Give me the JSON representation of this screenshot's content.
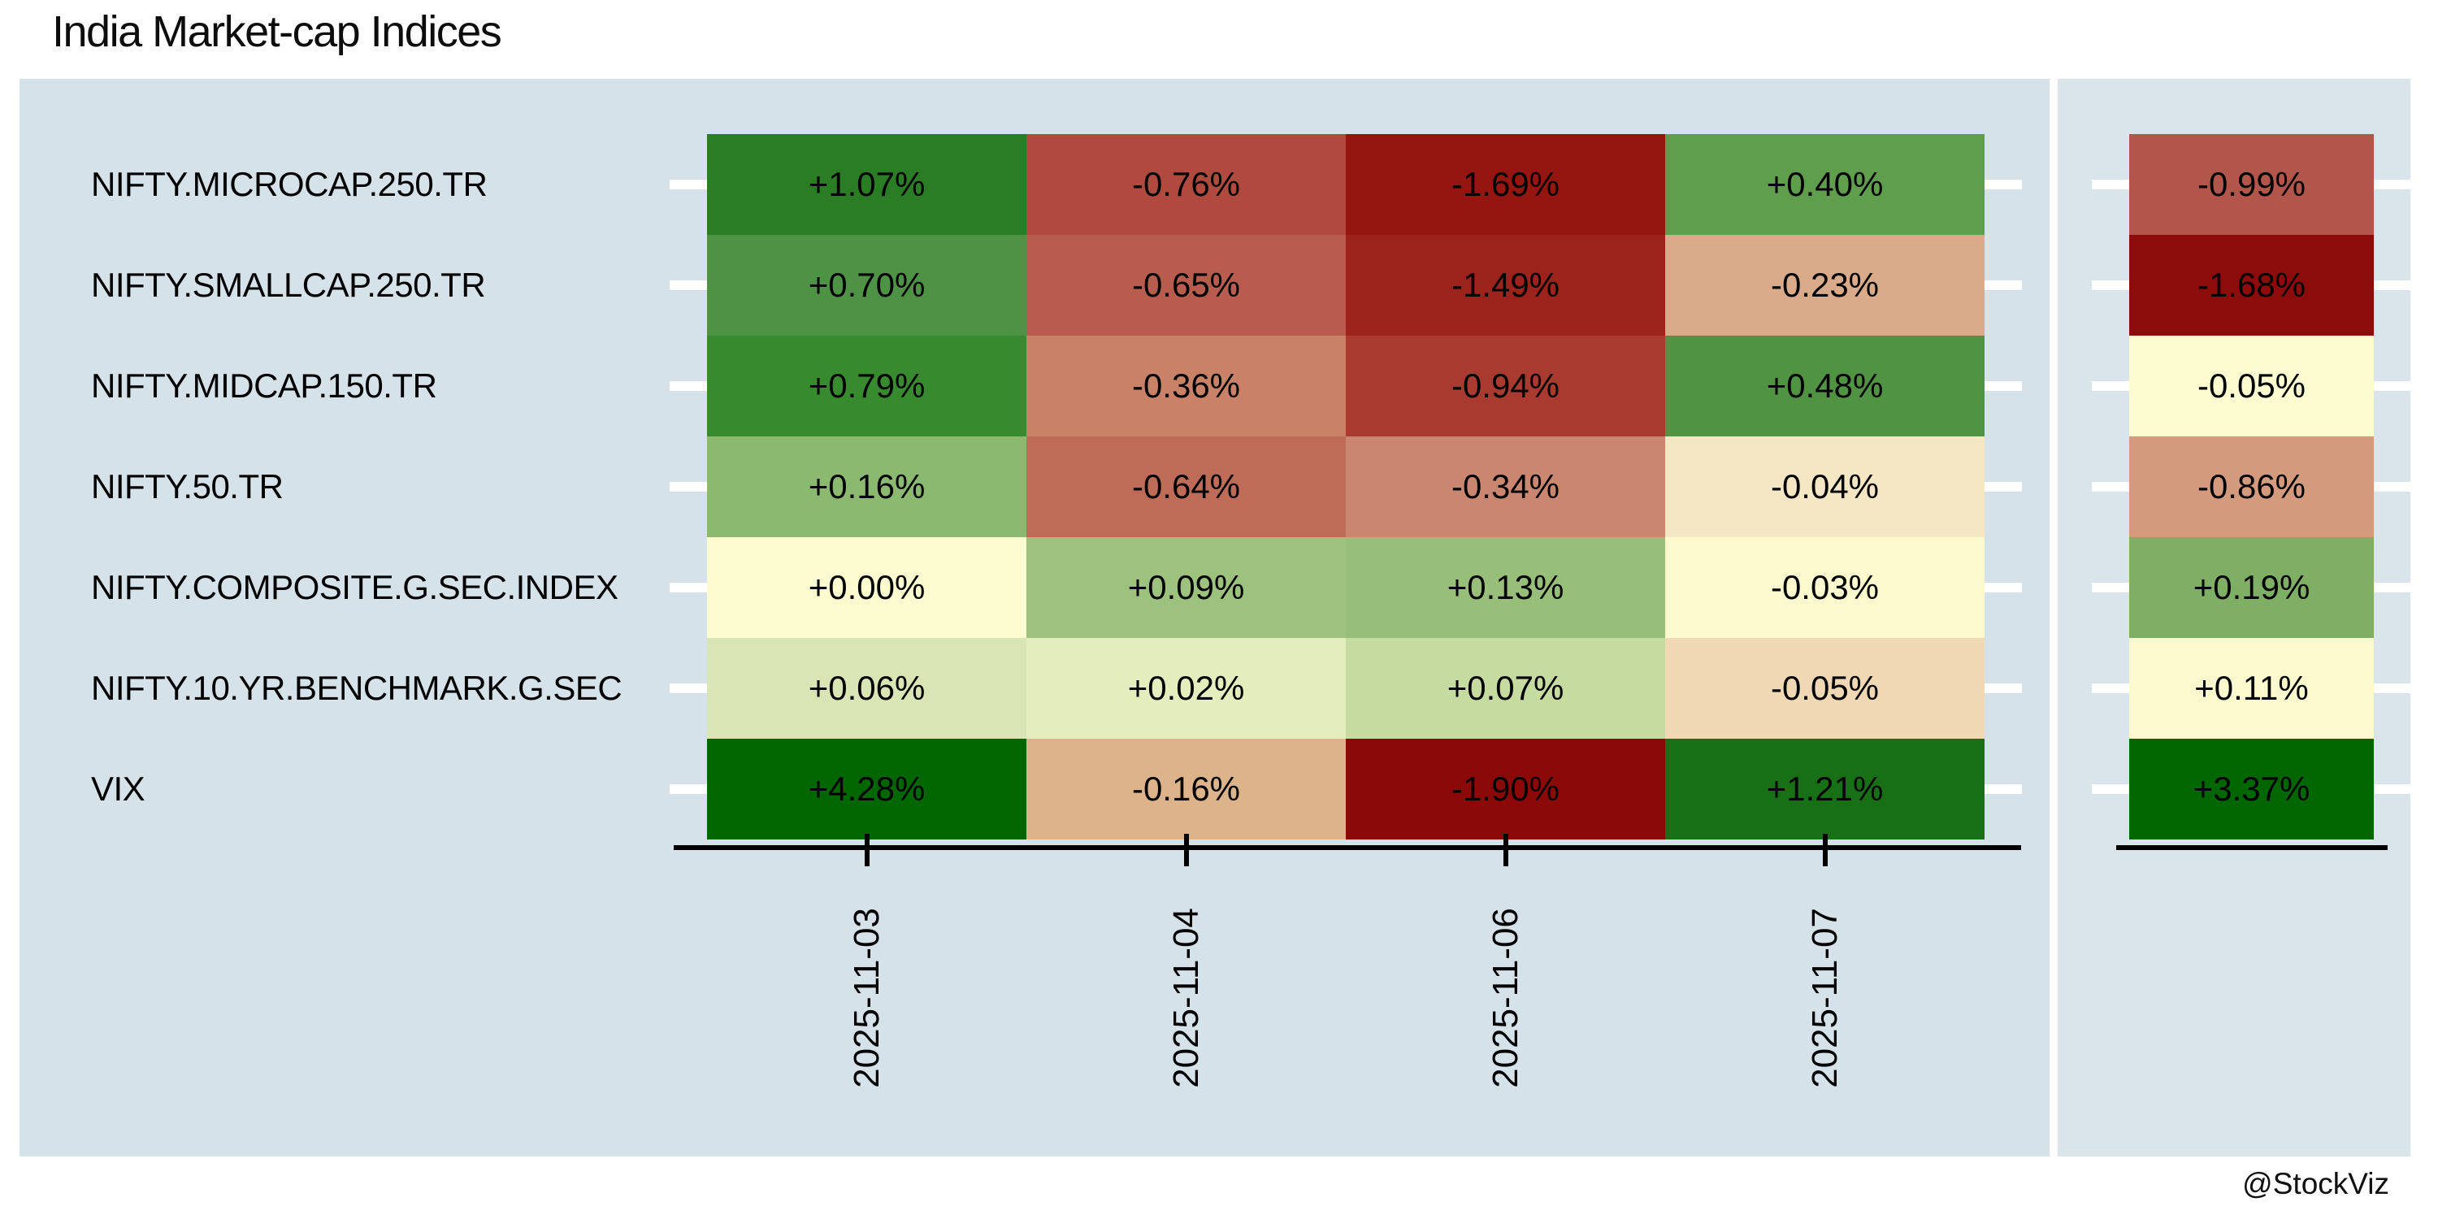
{
  "title": "India Market-cap Indices",
  "watermark": "@StockViz",
  "chart_data": {
    "type": "heatmap",
    "title": "India Market-cap Indices",
    "unit": "percent change",
    "x_labels": [
      "2025-11-03",
      "2025-11-04",
      "2025-11-06",
      "2025-11-07"
    ],
    "summary_column_note": "unlabeled trailing column",
    "layout": {
      "legend": false,
      "grid": false,
      "x_tick_rotation": 90
    },
    "colors": {
      "panel_background_main": "#d5e2e9",
      "panel_background_summary": "#d9e5eb",
      "axis_line": "#000000",
      "y_tick": "#ffffff",
      "cell_text": "#000000"
    },
    "rows": [
      {
        "label": "NIFTY.MICROCAP.250.TR",
        "cells": [
          {
            "display": "+1.07%",
            "value": 1.07,
            "color": "#2a7d24"
          },
          {
            "display": "-0.76%",
            "value": -0.76,
            "color": "#b04a3e"
          },
          {
            "display": "-1.69%",
            "value": -1.69,
            "color": "#951511"
          },
          {
            "display": "+0.40%",
            "value": 0.4,
            "color": "#5f9e4d"
          }
        ],
        "summary": {
          "display": "-0.99%",
          "value": -0.99,
          "color": "#b2554a"
        }
      },
      {
        "label": "NIFTY.SMALLCAP.250.TR",
        "cells": [
          {
            "display": "+0.70%",
            "value": 0.7,
            "color": "#4e9345"
          },
          {
            "display": "-0.65%",
            "value": -0.65,
            "color": "#b85d4d"
          },
          {
            "display": "-1.49%",
            "value": -1.49,
            "color": "#9c221c"
          },
          {
            "display": "-0.23%",
            "value": -0.23,
            "color": "#d9ab8a"
          }
        ],
        "summary": {
          "display": "-1.68%",
          "value": -1.68,
          "color": "#8c0c0b"
        }
      },
      {
        "label": "NIFTY.MIDCAP.150.TR",
        "cells": [
          {
            "display": "+0.79%",
            "value": 0.79,
            "color": "#388a2e"
          },
          {
            "display": "-0.36%",
            "value": -0.36,
            "color": "#c98268"
          },
          {
            "display": "-0.94%",
            "value": -0.94,
            "color": "#a93a30"
          },
          {
            "display": "+0.48%",
            "value": 0.48,
            "color": "#4f9343"
          }
        ],
        "summary": {
          "display": "-0.05%",
          "value": -0.05,
          "color": "#fdfbd0"
        }
      },
      {
        "label": "NIFTY.50.TR",
        "cells": [
          {
            "display": "+0.16%",
            "value": 0.16,
            "color": "#8bb970"
          },
          {
            "display": "-0.64%",
            "value": -0.64,
            "color": "#be6b58"
          },
          {
            "display": "-0.34%",
            "value": -0.34,
            "color": "#ca866e"
          },
          {
            "display": "-0.04%",
            "value": -0.04,
            "color": "#f5e6c4"
          }
        ],
        "summary": {
          "display": "-0.86%",
          "value": -0.86,
          "color": "#d49a7e"
        }
      },
      {
        "label": "NIFTY.COMPOSITE.G.SEC.INDEX",
        "cells": [
          {
            "display": "+0.00%",
            "value": 0.0,
            "color": "#fdfbd0"
          },
          {
            "display": "+0.09%",
            "value": 0.09,
            "color": "#9dc27e"
          },
          {
            "display": "+0.13%",
            "value": 0.13,
            "color": "#98bf7a"
          },
          {
            "display": "-0.03%",
            "value": -0.03,
            "color": "#fdf9ce"
          }
        ],
        "summary": {
          "display": "+0.19%",
          "value": 0.19,
          "color": "#7faf64"
        }
      },
      {
        "label": "NIFTY.10.YR.BENCHMARK.G.SEC",
        "cells": [
          {
            "display": "+0.06%",
            "value": 0.06,
            "color": "#d8e6b5"
          },
          {
            "display": "+0.02%",
            "value": 0.02,
            "color": "#e3edbd"
          },
          {
            "display": "+0.07%",
            "value": 0.07,
            "color": "#c6dba0"
          },
          {
            "display": "-0.05%",
            "value": -0.05,
            "color": "#f0d8b4"
          }
        ],
        "summary": {
          "display": "+0.11%",
          "value": 0.11,
          "color": "#fbf9cd"
        }
      },
      {
        "label": "VIX",
        "cells": [
          {
            "display": "+4.28%",
            "value": 4.28,
            "color": "#006600"
          },
          {
            "display": "-0.16%",
            "value": -0.16,
            "color": "#ddb38b"
          },
          {
            "display": "-1.90%",
            "value": -1.9,
            "color": "#8b0a09"
          },
          {
            "display": "+1.21%",
            "value": 1.21,
            "color": "#177015"
          }
        ],
        "summary": {
          "display": "+3.37%",
          "value": 3.37,
          "color": "#006600"
        }
      }
    ]
  }
}
